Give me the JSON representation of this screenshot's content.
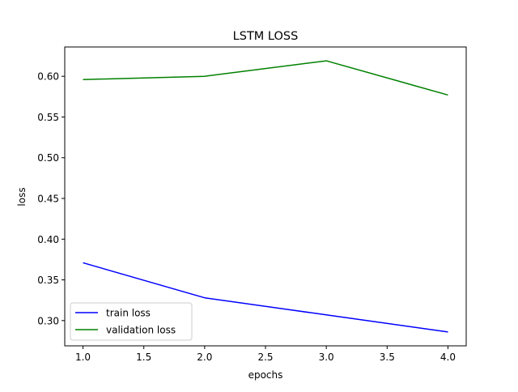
{
  "chart_data": {
    "type": "line",
    "title": "LSTM LOSS",
    "xlabel": "epochs",
    "ylabel": "loss",
    "x": [
      1.0,
      2.0,
      3.0,
      4.0
    ],
    "xlim": [
      0.85,
      4.15
    ],
    "ylim": [
      0.269,
      0.636
    ],
    "xticks": [
      1.0,
      1.5,
      2.0,
      2.5,
      3.0,
      3.5,
      4.0
    ],
    "xtick_labels": [
      "1.0",
      "1.5",
      "2.0",
      "2.5",
      "3.0",
      "3.5",
      "4.0"
    ],
    "yticks": [
      0.3,
      0.35,
      0.4,
      0.45,
      0.5,
      0.55,
      0.6
    ],
    "ytick_labels": [
      "0.30",
      "0.35",
      "0.40",
      "0.45",
      "0.50",
      "0.55",
      "0.60"
    ],
    "grid": false,
    "legend_position": "lower-left",
    "series": [
      {
        "name": "train loss",
        "color": "#0000ff",
        "values": [
          0.371,
          0.328,
          0.307,
          0.286
        ]
      },
      {
        "name": "validation loss",
        "color": "#008000",
        "values": [
          0.596,
          0.6,
          0.619,
          0.577
        ]
      }
    ]
  }
}
